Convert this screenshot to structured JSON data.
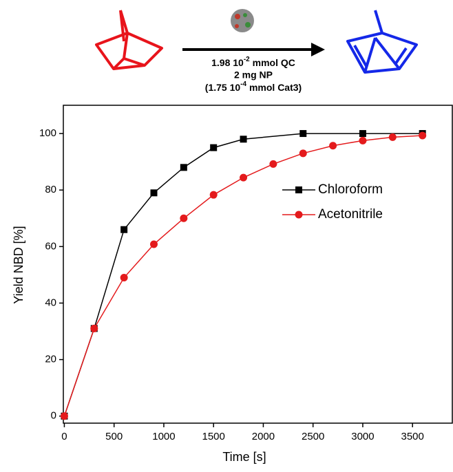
{
  "chart_data": {
    "type": "line",
    "annotations": {
      "line1": {
        "base": "1.98 10",
        "sup": "-2",
        "rest": " mmol QC"
      },
      "line2": "2 mg NP",
      "line3": {
        "base": "(1.75 10",
        "sup": "-4",
        "rest": " mmol Cat3)"
      }
    },
    "x_label": "Time [s]",
    "y_label": "Yield NBD [%]",
    "xlim": [
      -10,
      3900
    ],
    "ylim": [
      -2.5,
      110
    ],
    "xticks": [
      0,
      500,
      1000,
      1500,
      2000,
      2500,
      3000,
      3500
    ],
    "yticks": [
      0,
      20,
      40,
      60,
      80,
      100
    ],
    "series": [
      {
        "name": "Chloroform",
        "color": "#000000",
        "marker": "square",
        "x": [
          0,
          300,
          600,
          900,
          1200,
          1500,
          1800,
          2400,
          3000,
          3600
        ],
        "values": [
          0,
          31,
          66,
          79,
          88,
          95,
          98,
          100,
          100,
          100
        ]
      },
      {
        "name": "Acetonitrile",
        "color": "#e41a1c",
        "marker": "circle",
        "x": [
          0,
          300,
          600,
          900,
          1200,
          1500,
          1800,
          2100,
          2400,
          2700,
          3000,
          3300,
          3600
        ],
        "values": [
          0,
          31,
          49,
          60.8,
          70,
          78.3,
          84.4,
          89.2,
          93,
          95.7,
          97.5,
          98.7,
          99.3
        ]
      }
    ]
  }
}
